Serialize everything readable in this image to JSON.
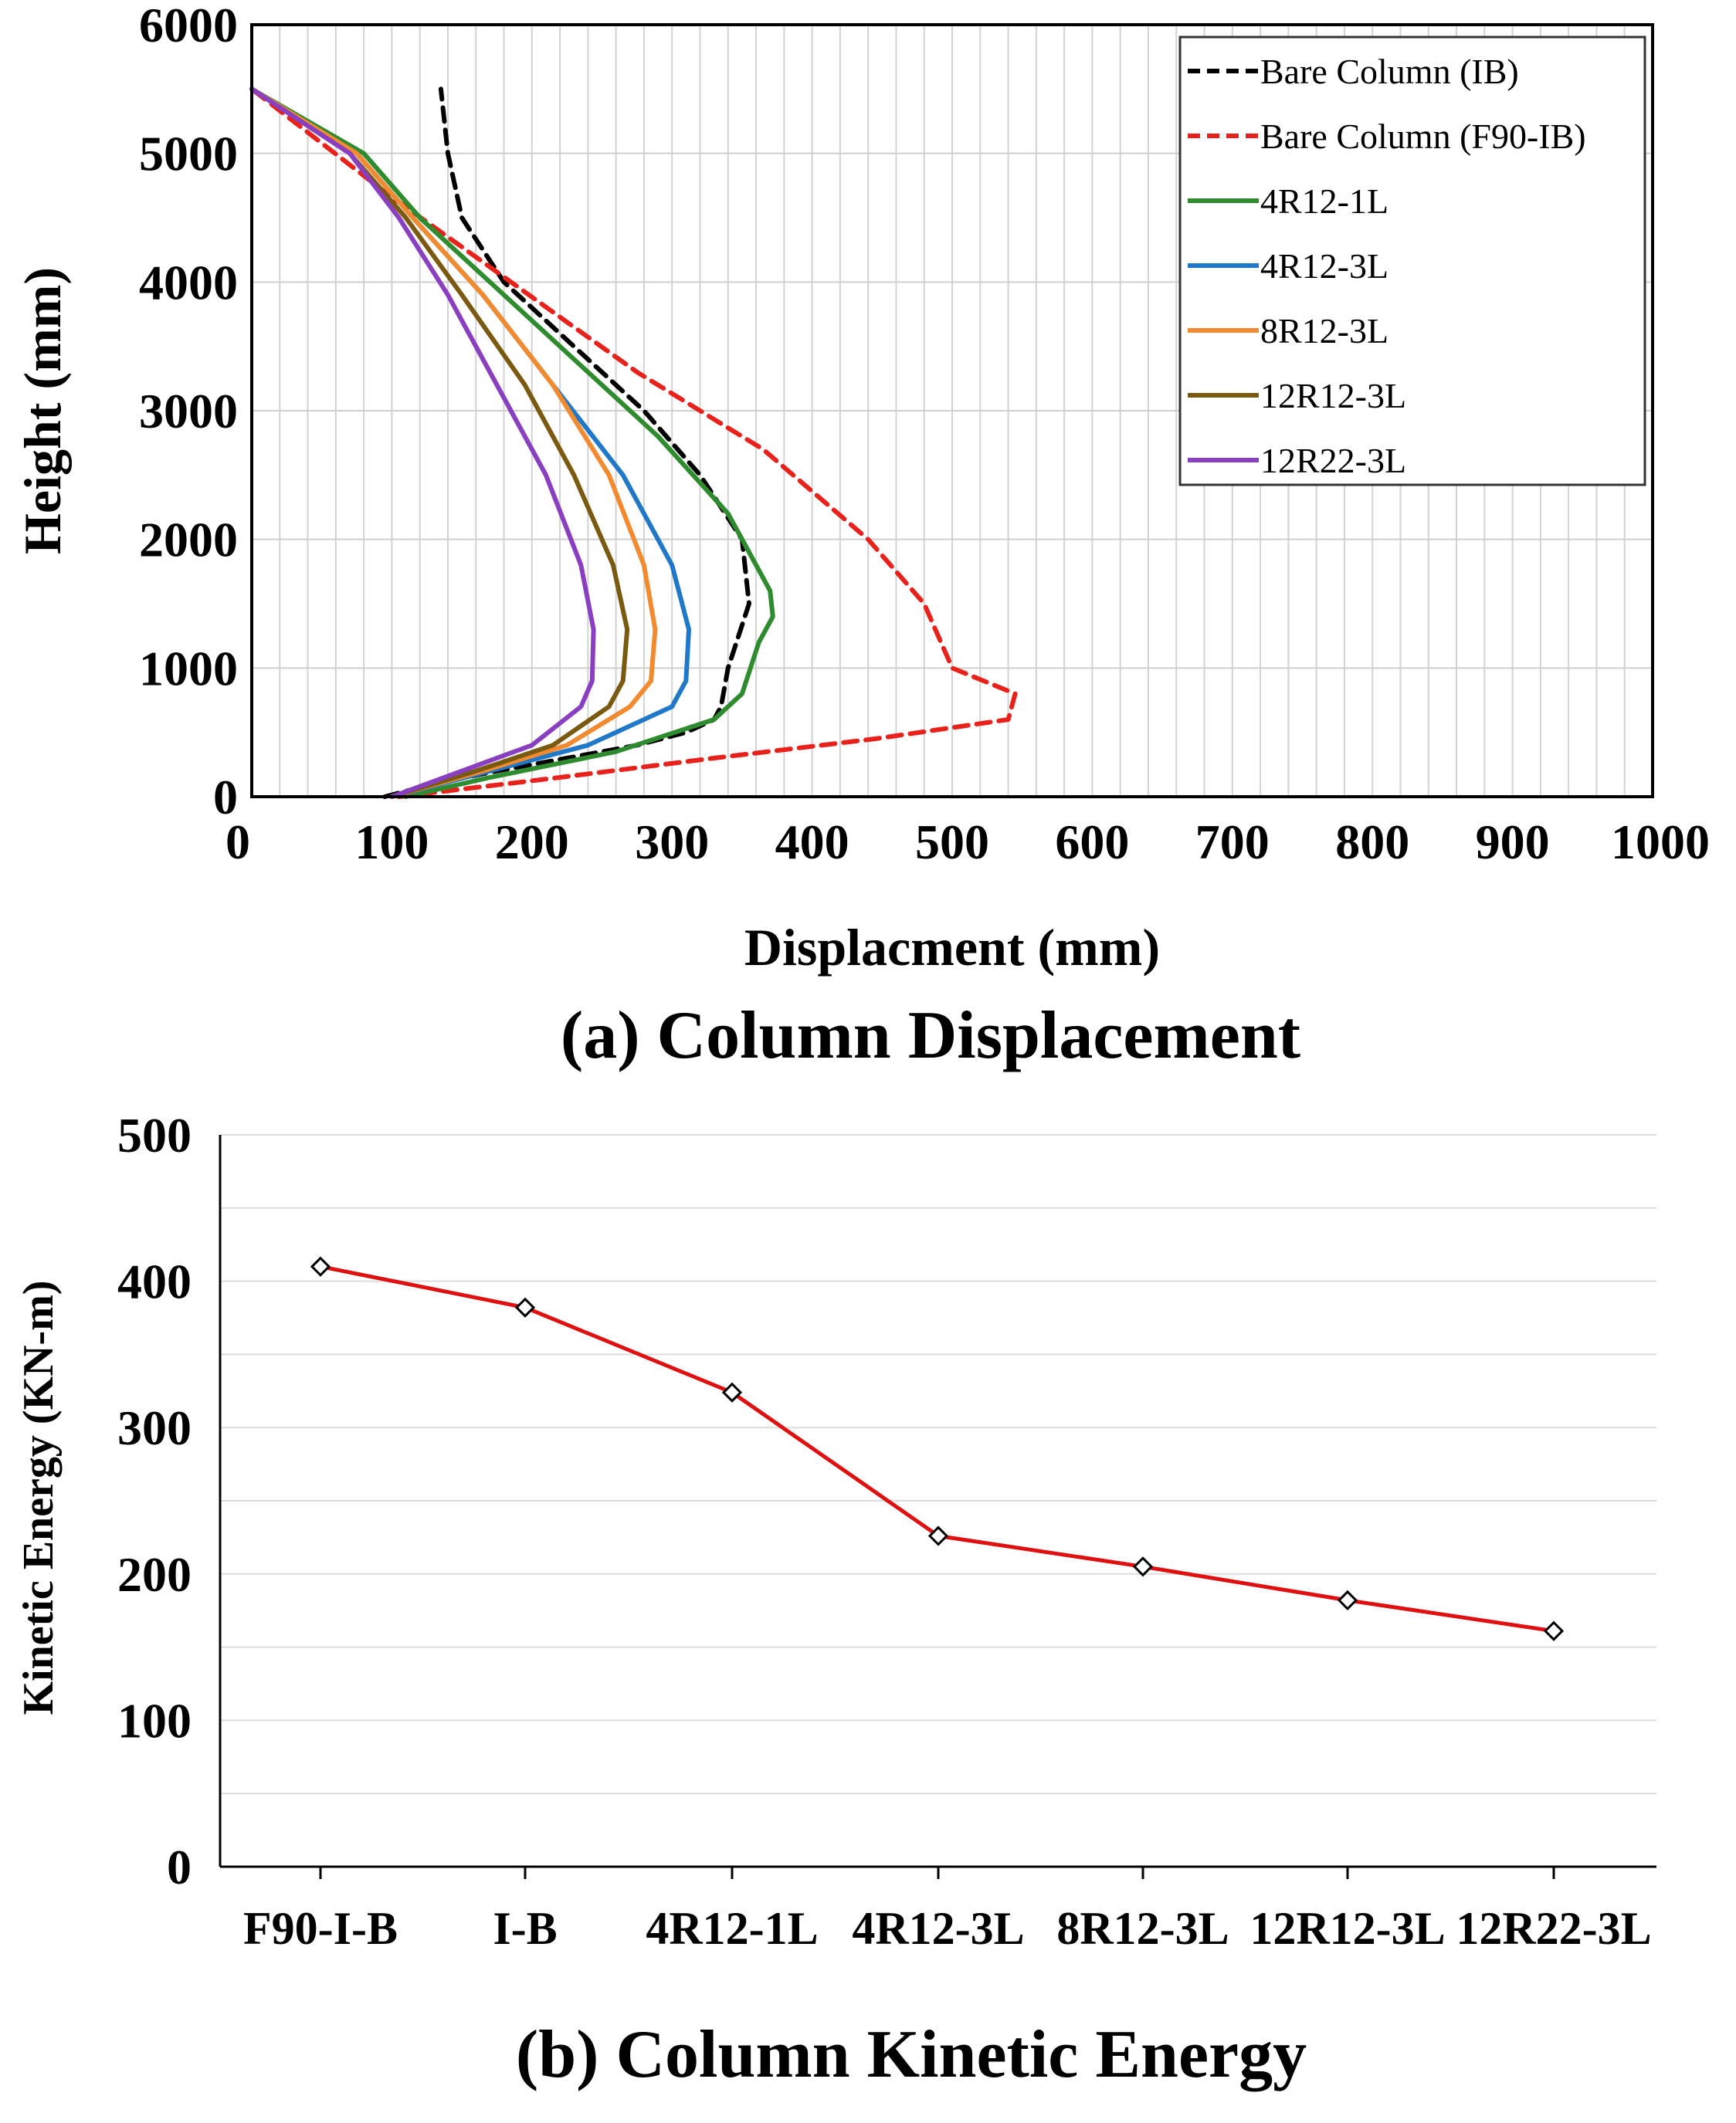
{
  "chart_data": [
    {
      "type": "line",
      "caption": "(a) Column Displacement",
      "xlabel": "Displacment (mm)",
      "ylabel": "Height (mm)",
      "xlim": [
        0,
        1000
      ],
      "ylim": [
        0,
        6000
      ],
      "xticks": [
        0,
        100,
        200,
        300,
        400,
        500,
        600,
        700,
        800,
        900,
        1000
      ],
      "yticks": [
        0,
        1000,
        2000,
        3000,
        4000,
        5000,
        6000
      ],
      "grid": true,
      "legend_position": "top-right",
      "series": [
        {
          "name": "Bare Column (IB)",
          "color": "#000000",
          "dashed": true,
          "x": [
            95,
            130,
            175,
            225,
            275,
            310,
            330,
            335,
            340,
            355,
            350,
            320,
            280,
            230,
            180,
            150,
            140,
            135
          ],
          "y": [
            0,
            100,
            200,
            300,
            400,
            500,
            600,
            700,
            1000,
            1500,
            2000,
            2500,
            3000,
            3500,
            4000,
            4500,
            5000,
            5500
          ]
        },
        {
          "name": "Bare Column (F90-IB)",
          "color": "#e8221b",
          "dashed": true,
          "x": [
            105,
            220,
            330,
            445,
            540,
            545,
            500,
            480,
            440,
            365,
            275,
            185,
            95,
            0
          ],
          "y": [
            0,
            150,
            300,
            450,
            600,
            800,
            1000,
            1500,
            2000,
            2700,
            3300,
            4000,
            4700,
            5500
          ]
        },
        {
          "name": "4R12-1L",
          "color": "#2e8b2e",
          "dashed": false,
          "x": [
            110,
            170,
            260,
            330,
            350,
            362,
            372,
            370,
            340,
            290,
            230,
            170,
            120,
            80,
            0
          ],
          "y": [
            0,
            150,
            350,
            600,
            800,
            1200,
            1400,
            1600,
            2200,
            2800,
            3400,
            4000,
            4500,
            5000,
            5500
          ]
        },
        {
          "name": "4R12-3L",
          "color": "#1f78c8",
          "dashed": false,
          "x": [
            100,
            170,
            240,
            300,
            310,
            312,
            300,
            265,
            215,
            165,
            115,
            75,
            0
          ],
          "y": [
            0,
            200,
            400,
            700,
            900,
            1300,
            1800,
            2500,
            3200,
            3900,
            4500,
            5000,
            5500
          ]
        },
        {
          "name": "8R12-3L",
          "color": "#f28a30",
          "dashed": false,
          "x": [
            100,
            165,
            225,
            270,
            285,
            288,
            280,
            255,
            215,
            165,
            115,
            75,
            0
          ],
          "y": [
            0,
            200,
            400,
            700,
            900,
            1300,
            1800,
            2500,
            3200,
            3900,
            4500,
            5000,
            5500
          ]
        },
        {
          "name": "12R12-3L",
          "color": "#7a5a10",
          "dashed": false,
          "x": [
            100,
            160,
            215,
            255,
            265,
            268,
            258,
            230,
            195,
            150,
            110,
            70,
            0
          ],
          "y": [
            0,
            200,
            400,
            700,
            900,
            1300,
            1800,
            2500,
            3200,
            3900,
            4500,
            5000,
            5500
          ]
        },
        {
          "name": "12R22-3L",
          "color": "#8a3fc0",
          "dashed": false,
          "x": [
            100,
            150,
            200,
            235,
            243,
            244,
            235,
            210,
            175,
            140,
            105,
            70,
            0
          ],
          "y": [
            0,
            200,
            400,
            700,
            900,
            1300,
            1800,
            2500,
            3200,
            3900,
            4500,
            5000,
            5500
          ]
        }
      ]
    },
    {
      "type": "line",
      "caption": "(b) Column Kinetic Energy",
      "xlabel": "",
      "ylabel": "Kinetic Energy (KN-m)",
      "ylim": [
        0,
        500
      ],
      "yticks": [
        0,
        100,
        200,
        300,
        400,
        500
      ],
      "grid": true,
      "marker": "diamond",
      "categories": [
        "F90-I-B",
        "I-B",
        "4R12-1L",
        "4R12-3L",
        "8R12-3L",
        "12R12-3L",
        "12R22-3L"
      ],
      "series": [
        {
          "name": "Kinetic Energy",
          "color": "#e01010",
          "values": [
            410,
            382,
            324,
            226,
            205,
            182,
            161
          ]
        }
      ]
    }
  ]
}
